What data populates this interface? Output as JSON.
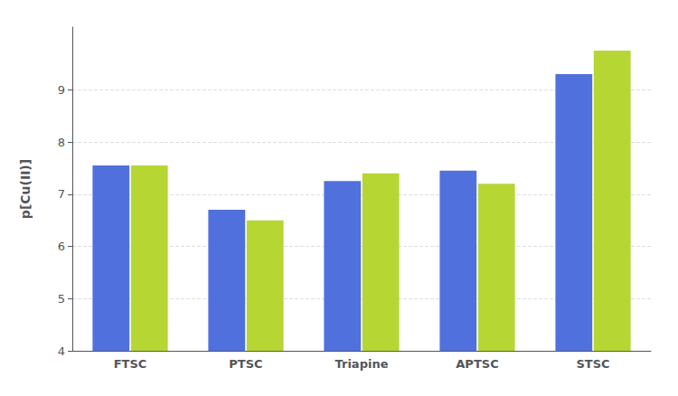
{
  "chart_data": {
    "type": "bar",
    "categories": [
      "FTSC",
      "PTSC",
      "Triapine",
      "APTSC",
      "STSC"
    ],
    "series": [
      {
        "values": [
          7.55,
          6.7,
          7.25,
          7.45,
          9.3
        ]
      },
      {
        "values": [
          7.55,
          6.5,
          7.4,
          7.2,
          9.75
        ]
      }
    ],
    "ylabel": "p[Cu(II)]",
    "ylim": [
      4,
      10.2
    ],
    "yticks": [
      4,
      5,
      6,
      7,
      8,
      9
    ],
    "grid": true
  }
}
